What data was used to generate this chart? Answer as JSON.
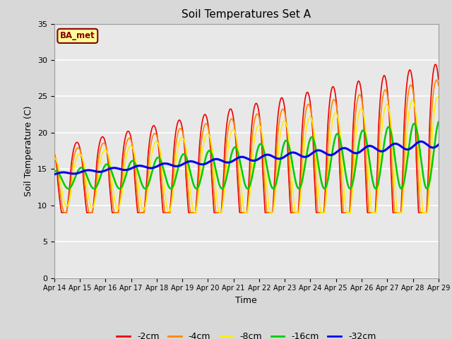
{
  "title": "Soil Temperatures Set A",
  "xlabel": "Time",
  "ylabel": "Soil Temperature (C)",
  "ylim": [
    0,
    35
  ],
  "yticks": [
    0,
    5,
    10,
    15,
    20,
    25,
    30,
    35
  ],
  "fig_bg_color": "#d8d8d8",
  "plot_bg_color": "#e8e8e8",
  "line_colors": {
    "-2cm": "#ee0000",
    "-4cm": "#ff8800",
    "-8cm": "#ffee00",
    "-16cm": "#00cc00",
    "-32cm": "#0000ee"
  },
  "line_widths": {
    "-2cm": 1.2,
    "-4cm": 1.2,
    "-8cm": 1.2,
    "-16cm": 1.8,
    "-32cm": 2.2
  },
  "legend_label": "BA_met",
  "start_day": 14,
  "end_day": 29
}
